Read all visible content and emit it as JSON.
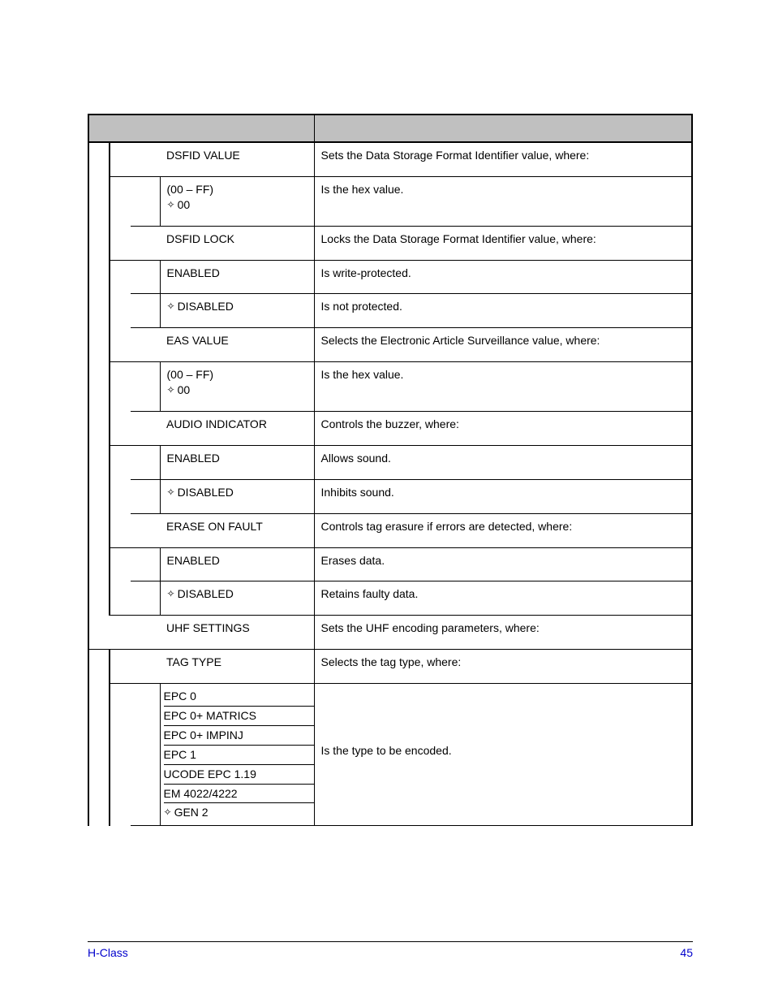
{
  "colors": {
    "header_bg": "#c0c0c0",
    "link": "#0000cc",
    "rule": "#000000",
    "text": "#000000"
  },
  "rows": {
    "dsfid_value": {
      "label": "DSFID VALUE",
      "desc": "Sets the Data Storage Format Identifier value, where:"
    },
    "dsfid_value_opt": {
      "label": "(00 – FF)",
      "default": "00",
      "desc": "Is the hex value."
    },
    "dsfid_lock": {
      "label": "DSFID LOCK",
      "desc": "Locks the Data Storage Format Identifier value, where:"
    },
    "dsfid_lock_en": {
      "label": "ENABLED",
      "desc": "Is write-protected."
    },
    "dsfid_lock_dis": {
      "label": "DISABLED",
      "desc": "Is not protected."
    },
    "eas_value": {
      "label": "EAS VALUE",
      "desc": "Selects the Electronic Article Surveillance value, where:"
    },
    "eas_value_opt": {
      "label": "(00 – FF)",
      "default": "00",
      "desc": "Is the hex value."
    },
    "audio": {
      "label": "AUDIO INDICATOR",
      "desc": "Controls the buzzer, where:"
    },
    "audio_en": {
      "label": "ENABLED",
      "desc": "Allows sound."
    },
    "audio_dis": {
      "label": "DISABLED",
      "desc": "Inhibits sound."
    },
    "erase": {
      "label": "ERASE ON FAULT",
      "desc": "Controls tag erasure if errors are detected, where:"
    },
    "erase_en": {
      "label": "ENABLED",
      "desc": "Erases data."
    },
    "erase_dis": {
      "label": "DISABLED",
      "desc": "Retains faulty data."
    },
    "uhf": {
      "label": "UHF SETTINGS",
      "desc": "Sets the UHF encoding parameters, where:"
    },
    "tagtype": {
      "label": "TAG TYPE",
      "desc": "Selects the tag type, where:"
    },
    "tagtype_opts": {
      "desc": "Is the type to be encoded."
    }
  },
  "tag_types": [
    {
      "label": "EPC 0"
    },
    {
      "label": "EPC 0+ MATRICS"
    },
    {
      "label": "EPC 0+ IMPINJ"
    },
    {
      "label": "EPC 1"
    },
    {
      "label": "UCODE EPC 1.19"
    },
    {
      "label": "EM 4022/4222"
    },
    {
      "label": "GEN 2",
      "default": true
    }
  ],
  "footer": {
    "left": "H-Class",
    "page": "45"
  }
}
